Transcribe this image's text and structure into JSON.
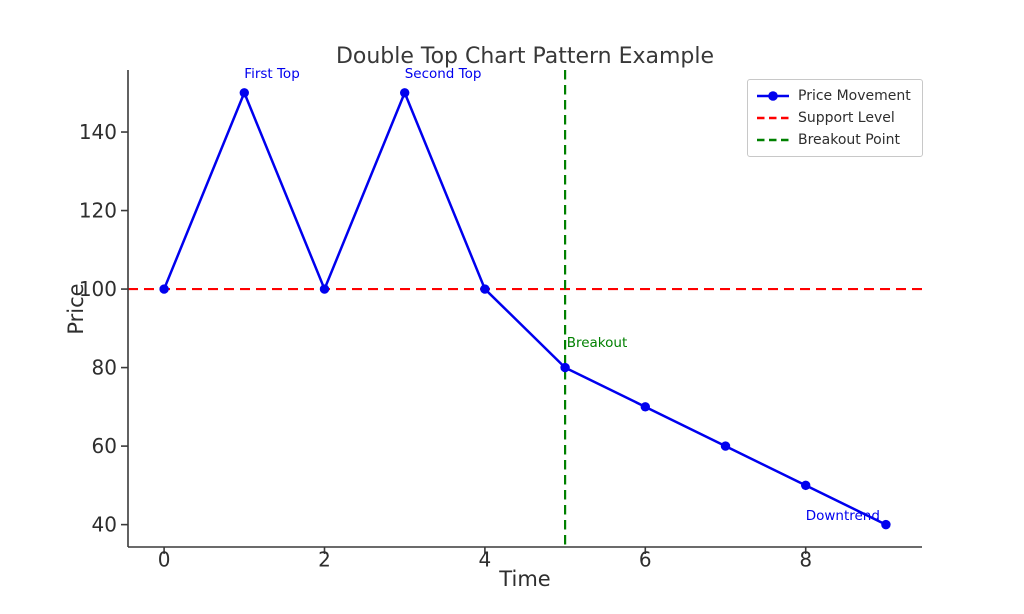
{
  "colors": {
    "price": "#0000ee",
    "support": "#ff0000",
    "breakout": "#008000",
    "text": "#2e2e2e",
    "spine": "#3a3a3a",
    "legend_border": "#c8c8c8",
    "background": "#ffffff"
  },
  "chart_data": {
    "type": "line",
    "title": "Double Top Chart Pattern Example",
    "xlabel": "Time",
    "ylabel": "Price",
    "x": [
      0,
      1,
      2,
      3,
      4,
      5,
      6,
      7,
      8,
      9
    ],
    "series": [
      {
        "name": "Price Movement",
        "values": [
          100,
          150,
          100,
          150,
          100,
          80,
          70,
          60,
          50,
          40
        ]
      }
    ],
    "support_level": 100,
    "breakout_x": 5,
    "xticks": [
      0,
      2,
      4,
      6,
      8
    ],
    "yticks": [
      40,
      60,
      80,
      100,
      120,
      140
    ],
    "xlim": [
      -0.45,
      9.45
    ],
    "ylim": [
      34.3,
      155.8
    ],
    "grid": false,
    "legend_position": "upper right",
    "legend": [
      {
        "label": "Price Movement",
        "style": "solid-marker"
      },
      {
        "label": "Support Level",
        "style": "dashed"
      },
      {
        "label": "Breakout Point",
        "style": "dashed"
      }
    ],
    "annotations": [
      {
        "text": "First Top",
        "x": 1,
        "y": 153,
        "color": "#0000ee"
      },
      {
        "text": "Second Top",
        "x": 3,
        "y": 153,
        "color": "#0000ee"
      },
      {
        "text": "Breakout",
        "x": 5.02,
        "y": 84.5,
        "color": "#008000"
      },
      {
        "text": "Downtrend",
        "x": 8,
        "y": 40.5,
        "color": "#0000ee"
      }
    ]
  }
}
